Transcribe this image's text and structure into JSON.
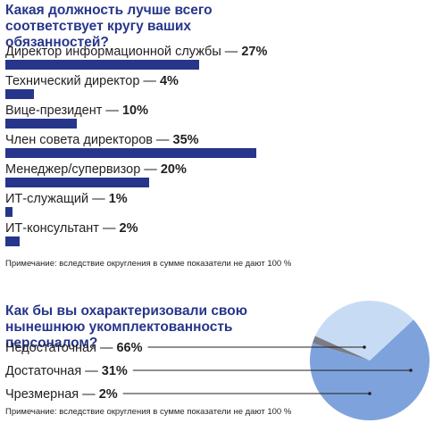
{
  "colors": {
    "title": "#27368b",
    "bar": "#27368b",
    "pie_slices": [
      "#7ea3dc",
      "#c7dcf4",
      "#7a7d85"
    ]
  },
  "chart_data": [
    {
      "type": "bar",
      "title": "Какая должность лучше всего соответствует кругу ваших обязанностей?",
      "orientation": "horizontal",
      "categories": [
        "Директор информационной службы",
        "Технический директор",
        "Вице-президент",
        "Член совета директоров",
        "Менеджер/супервизор",
        "ИТ-служащий",
        "ИТ-консультант"
      ],
      "values": [
        27,
        4,
        10,
        35,
        20,
        1,
        2
      ],
      "value_labels": [
        "27%",
        "4%",
        "10%",
        "35%",
        "20%",
        "1%",
        "2%"
      ],
      "separator": " — ",
      "note": "Примечание: вследствие округления в сумме показатели не дают 100 %",
      "xlim": [
        0,
        35
      ]
    },
    {
      "type": "pie",
      "title": "Как бы вы охарактеризовали свою нынешнюю укомплектованность персоналом?",
      "categories": [
        "Недостаточная",
        "Достаточная",
        "Чрезмерная"
      ],
      "values": [
        66,
        31,
        2
      ],
      "value_labels": [
        "66%",
        "31%",
        "2%"
      ],
      "separator": " — ",
      "note": "Примечание: вследствие округления в сумме показатели не дают 100 %"
    }
  ]
}
